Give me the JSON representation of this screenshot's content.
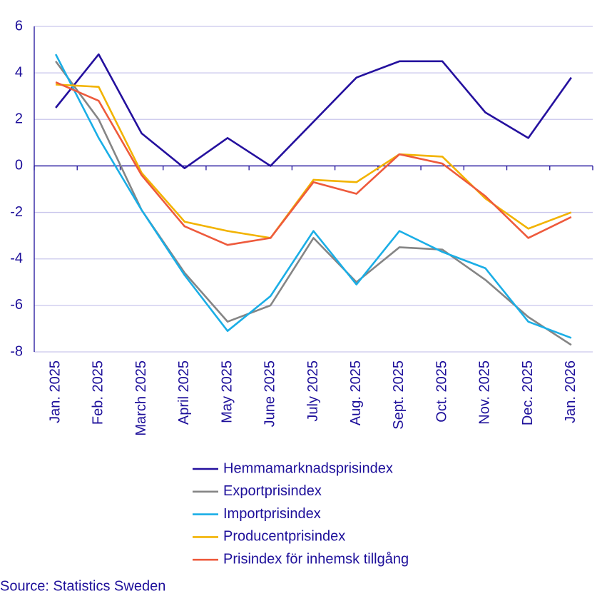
{
  "chart_data": {
    "type": "line",
    "categories": [
      "Jan. 2025",
      "Feb. 2025",
      "March 2025",
      "April 2025",
      "May 2025",
      "June 2025",
      "July 2025",
      "Aug. 2025",
      "Sept. 2025",
      "Oct. 2025",
      "Nov. 2025",
      "Dec. 2025",
      "Jan. 2026"
    ],
    "series": [
      {
        "name": "Hemmamarknadsprisindex",
        "color": "#24109e",
        "values": [
          2.5,
          4.8,
          1.4,
          -0.1,
          1.2,
          0.0,
          1.9,
          3.8,
          4.5,
          4.5,
          2.3,
          1.2,
          3.8
        ]
      },
      {
        "name": "Exportprisindex",
        "color": "#858585",
        "values": [
          4.5,
          2.0,
          -1.9,
          -4.6,
          -6.7,
          -6.0,
          -3.1,
          -5.0,
          -3.5,
          -3.6,
          -4.9,
          -6.5,
          -7.7
        ]
      },
      {
        "name": "Importprisindex",
        "color": "#1aaee6",
        "values": [
          4.8,
          1.2,
          -1.9,
          -4.7,
          -7.1,
          -5.6,
          -2.8,
          -5.1,
          -2.8,
          -3.7,
          -4.4,
          -6.7,
          -7.4
        ]
      },
      {
        "name": "Producentprisindex",
        "color": "#f2b300",
        "values": [
          3.5,
          3.4,
          -0.3,
          -2.4,
          -2.8,
          -3.1,
          -0.6,
          -0.7,
          0.5,
          0.4,
          -1.4,
          -2.7,
          -2.0
        ]
      },
      {
        "name": "Prisindex för inhemsk tillgång",
        "color": "#ee5a3c",
        "values": [
          3.6,
          2.8,
          -0.4,
          -2.6,
          -3.4,
          -3.1,
          -0.7,
          -1.2,
          0.5,
          0.1,
          -1.3,
          -3.1,
          -2.2
        ]
      }
    ],
    "ylim": [
      -8,
      6
    ],
    "yticks": [
      -8,
      -6,
      -4,
      -2,
      0,
      2,
      4,
      6
    ],
    "grid": true,
    "source": "Source: Statistics Sweden"
  }
}
